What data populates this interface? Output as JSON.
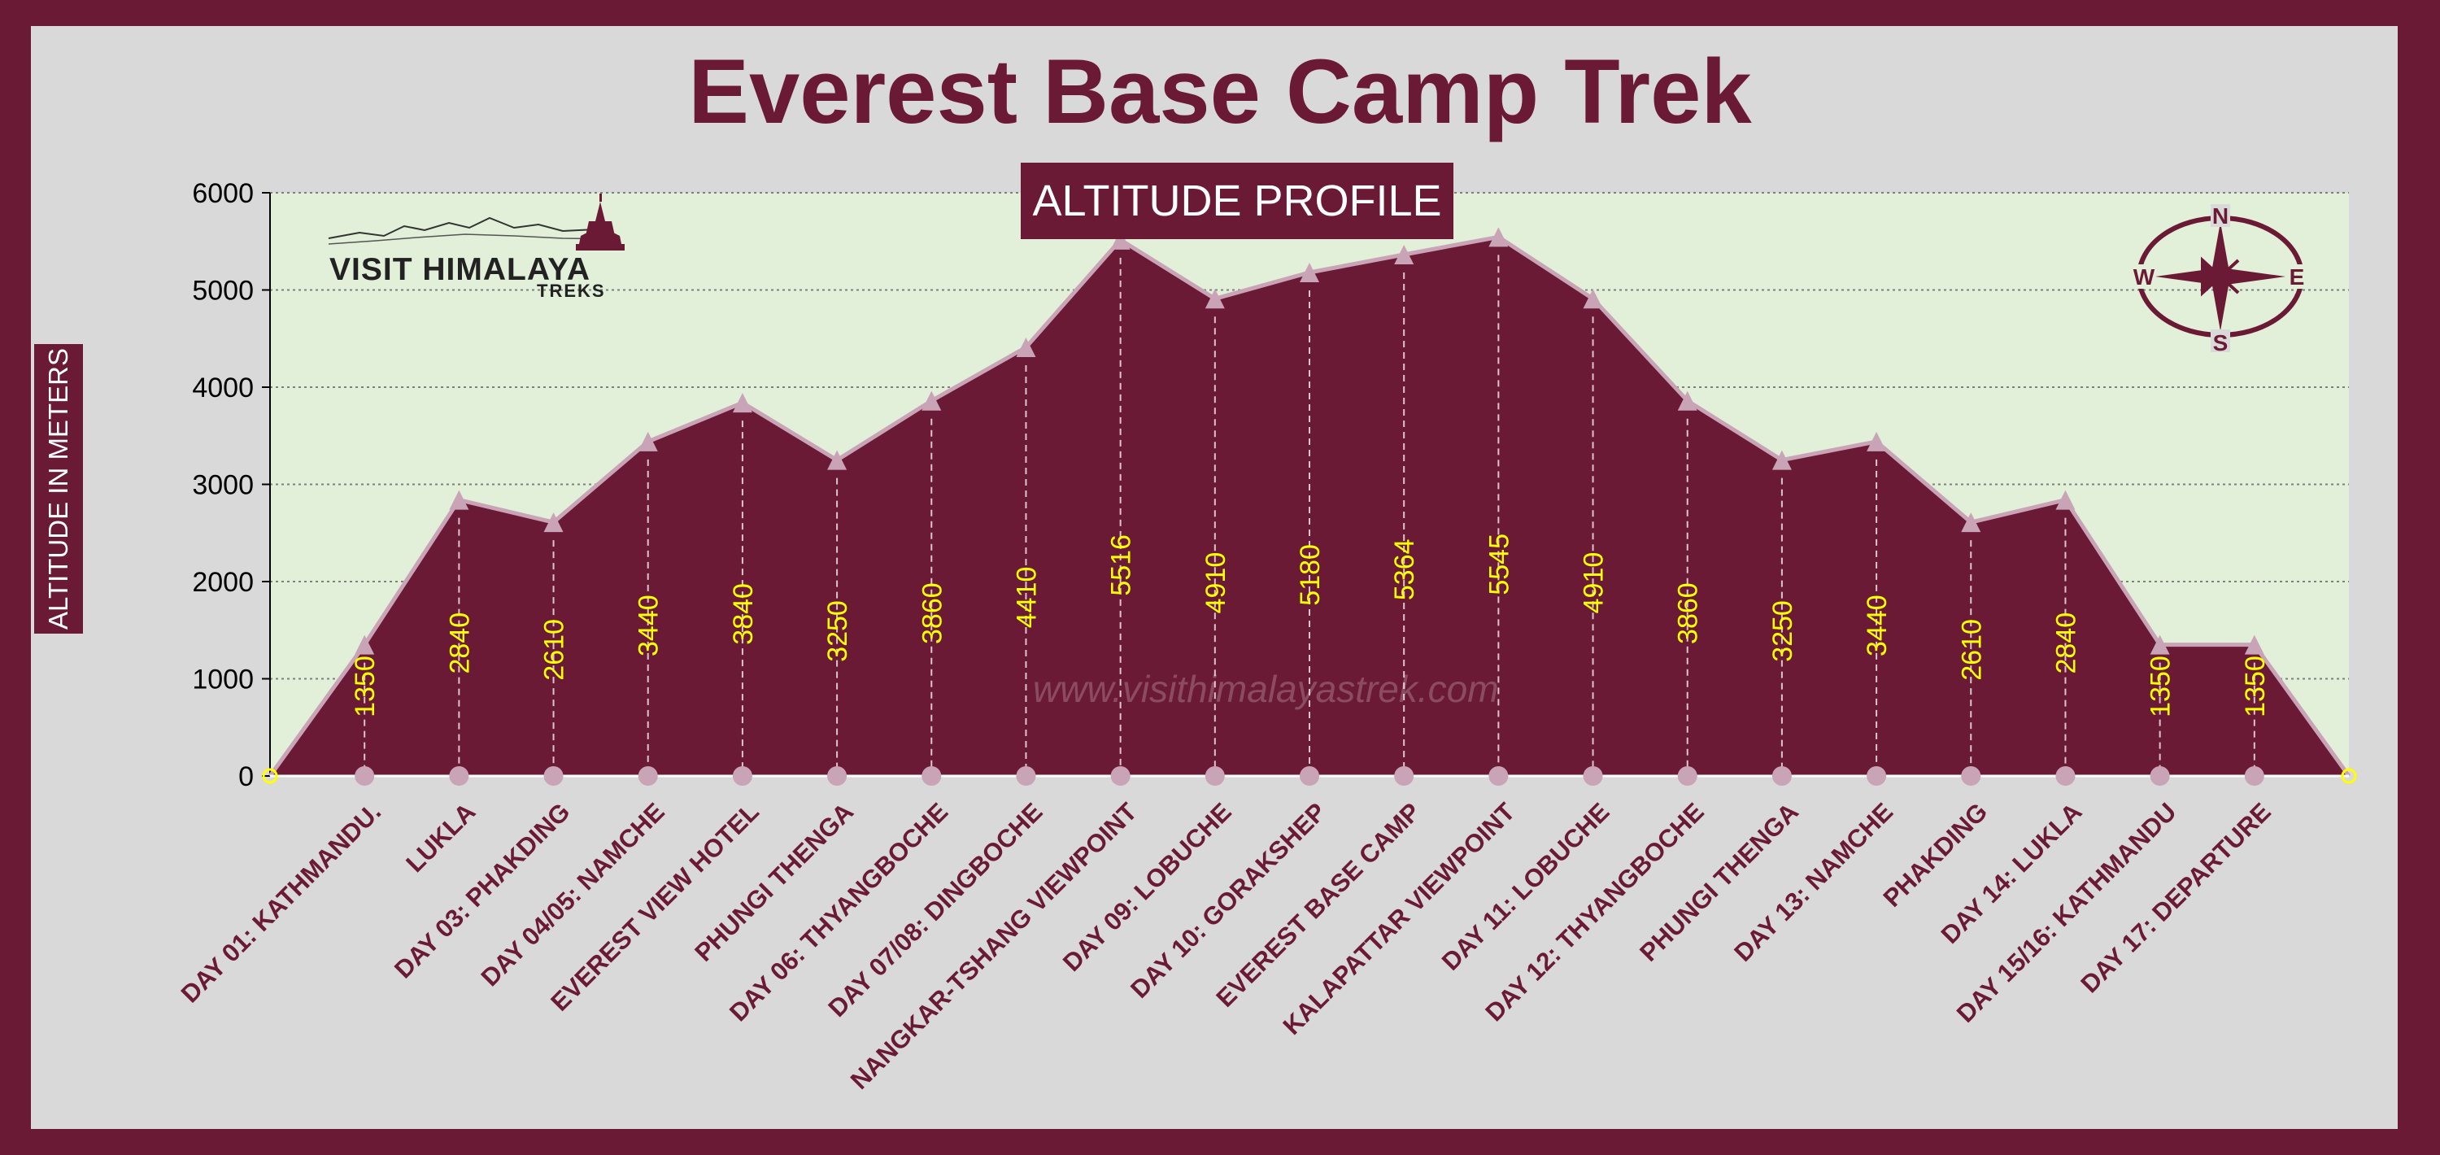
{
  "title": "Everest Base Camp Trek",
  "logo": {
    "name": "VISIT HIMALAYA",
    "sub": "TREKS"
  },
  "watermark": "www.visithimalayastrek.com",
  "compass": {
    "n": "N",
    "e": "E",
    "s": "S",
    "w": "W"
  },
  "colors": {
    "frame": "#6b1a36",
    "plot_bg": "#e2efd9",
    "area": "#6b1a36",
    "area_line": "#c9a3b6",
    "value_label": "#ffff00"
  },
  "chart_data": {
    "type": "area",
    "title": "ALTITUDE PROFILE",
    "ylabel": "ALTITUDE IN METERS",
    "xlabel": "",
    "ylim": [
      0,
      6000
    ],
    "yticks": [
      0,
      1000,
      2000,
      3000,
      4000,
      5000,
      6000
    ],
    "grid": true,
    "categories": [
      "DAY 01: KATHMANDU.",
      "LUKLA",
      "DAY 03: PHAKDING",
      "DAY 04/05: NAMCHE",
      "EVEREST VIEW HOTEL",
      "PHUNGI THENGA",
      "DAY 06: THYANGBOCHE",
      "DAY 07/08: DINGBOCHE",
      "NANGKAR-TSHANG VIEWPOINT",
      "DAY 09: LOBUCHE",
      "DAY 10: GORAKSHEP",
      "EVEREST BASE CAMP",
      "KALAPATTAR VIEWPOINT",
      "DAY 11: LOBUCHE",
      "DAY 12: THYANGBOCHE",
      "PHUNGI THENGA",
      "DAY 13: NAMCHE",
      "PHAKDING",
      "DAY 14: LUKLA",
      "DAY 15/16: KATHMANDU",
      "DAY 17: DEPARTURE"
    ],
    "values": [
      1350,
      2840,
      2610,
      3440,
      3840,
      3250,
      3860,
      4410,
      5516,
      4910,
      5180,
      5364,
      5545,
      4910,
      3860,
      3250,
      3440,
      2610,
      2840,
      1350,
      1350
    ],
    "start_value": 0,
    "end_value": 0
  }
}
